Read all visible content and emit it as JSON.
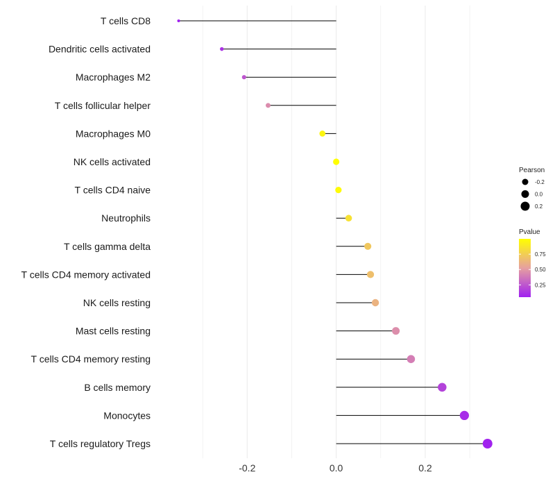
{
  "chart_data": {
    "type": "lollipop",
    "categories": [
      "T cells CD8",
      "Dendritic cells activated",
      "Macrophages M2",
      "T cells follicular helper",
      "Macrophages M0",
      "NK cells activated",
      "T cells CD4 naive",
      "Neutrophils",
      "T cells gamma delta",
      "T cells CD4 memory activated",
      "NK cells resting",
      "Mast cells resting",
      "T cells CD4 memory resting",
      "B cells memory",
      "Monocytes",
      "T cells regulatory  Tregs"
    ],
    "values": [
      -0.354,
      -0.257,
      -0.207,
      -0.153,
      -0.031,
      0.0,
      0.005,
      0.028,
      0.071,
      0.077,
      0.088,
      0.134,
      0.168,
      0.238,
      0.288,
      0.34
    ],
    "pvalues": [
      0.03,
      0.12,
      0.25,
      0.45,
      0.95,
      1.0,
      0.98,
      0.85,
      0.72,
      0.68,
      0.62,
      0.46,
      0.4,
      0.18,
      0.1,
      0.06
    ],
    "xlim": [
      -0.4,
      0.37
    ],
    "xticks": [
      -0.2,
      0.0,
      0.2
    ],
    "xtick_labels": [
      "-0.2",
      "0.0",
      "0.2"
    ],
    "xlabel": "",
    "ylabel": "",
    "grid": true,
    "legend": {
      "size": {
        "title": "Pearson",
        "values": [
          -0.2,
          0.0,
          0.2
        ],
        "labels": [
          "-0.2",
          "0.0",
          "0.2"
        ]
      },
      "color": {
        "title": "Pvalue",
        "range": [
          0.05,
          1.0
        ],
        "values": [
          0.75,
          0.5,
          0.25
        ],
        "labels": [
          "0.75",
          "0.50",
          "0.25"
        ],
        "low_color": "#a020f0",
        "mid_color": "#e6a0a0",
        "high_color": "#ffff00"
      },
      "placement": "right"
    },
    "colors": {
      "line": "#000000",
      "grid": "#ebebeb"
    }
  }
}
